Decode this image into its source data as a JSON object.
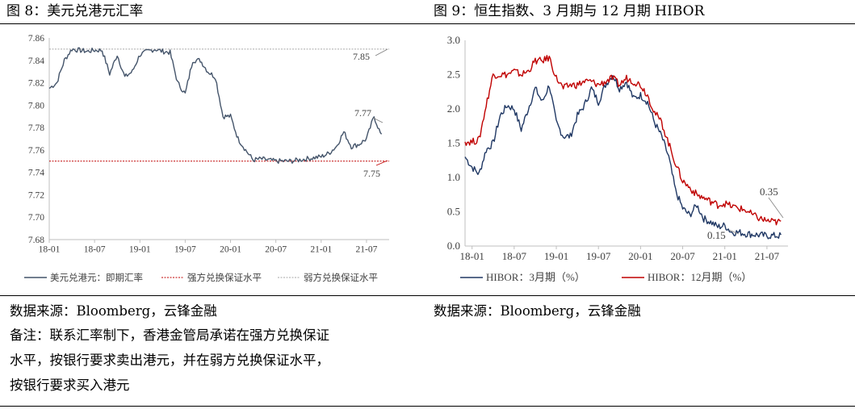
{
  "left": {
    "title": "图 8：美元兑港元汇率",
    "source": "数据来源：Bloomberg，云锋金融",
    "notes": [
      "备注：联系汇率制下，香港金管局承诺在强方兑换保证",
      "水平，按银行要求卖出港元，并在弱方兑换保证水平，",
      "按银行要求买入港元"
    ]
  },
  "right": {
    "title": "图 9：恒生指数、3 月期与 12 月期 HIBOR",
    "source": "数据来源：Bloomberg，云锋金融"
  },
  "chart_data": [
    {
      "type": "line",
      "ylim": [
        7.68,
        7.86
      ],
      "yticks": [
        "7.68",
        "7.70",
        "7.72",
        "7.74",
        "7.76",
        "7.78",
        "7.80",
        "7.82",
        "7.84",
        "7.86"
      ],
      "xticks": [
        "18-01",
        "18-07",
        "19-01",
        "19-07",
        "20-01",
        "20-07",
        "21-01",
        "21-07"
      ],
      "x_start": "2018-01",
      "x_end": "2021-10",
      "grid": false,
      "legend_position": "bottom",
      "series": [
        {
          "name": "美元兑港元：即期汇率",
          "color": "#44546a",
          "x": [
            "2018-01",
            "2018-02",
            "2018-03",
            "2018-04",
            "2018-05",
            "2018-06",
            "2018-07",
            "2018-08",
            "2018-09",
            "2018-10",
            "2018-11",
            "2018-12",
            "2019-01",
            "2019-02",
            "2019-03",
            "2019-04",
            "2019-05",
            "2019-06",
            "2019-07",
            "2019-08",
            "2019-09",
            "2019-10",
            "2019-11",
            "2019-12",
            "2020-01",
            "2020-02",
            "2020-03",
            "2020-04",
            "2020-05",
            "2020-06",
            "2020-07",
            "2020-08",
            "2020-09",
            "2020-10",
            "2020-11",
            "2020-12",
            "2021-01",
            "2021-02",
            "2021-03",
            "2021-04",
            "2021-05",
            "2021-06",
            "2021-07",
            "2021-08",
            "2021-09"
          ],
          "values": [
            7.815,
            7.82,
            7.84,
            7.85,
            7.849,
            7.848,
            7.849,
            7.849,
            7.828,
            7.845,
            7.825,
            7.83,
            7.845,
            7.848,
            7.85,
            7.848,
            7.847,
            7.82,
            7.81,
            7.84,
            7.84,
            7.83,
            7.825,
            7.79,
            7.79,
            7.77,
            7.76,
            7.751,
            7.752,
            7.751,
            7.75,
            7.75,
            7.75,
            7.751,
            7.752,
            7.753,
            7.754,
            7.757,
            7.763,
            7.776,
            7.763,
            7.765,
            7.77,
            7.79,
            7.772
          ]
        }
      ],
      "reference_lines": [
        {
          "name": "强方兑换保证水平",
          "value": 7.75,
          "color": "#c00000"
        },
        {
          "name": "弱方兑换保证水平",
          "value": 7.85,
          "color": "#a6a6a6"
        }
      ],
      "annotations": [
        "7.85",
        "7.77",
        "7.75"
      ]
    },
    {
      "type": "line",
      "ylim": [
        0.0,
        3.0
      ],
      "yticks": [
        "0.0",
        "0.5",
        "1.0",
        "1.5",
        "2.0",
        "2.5",
        "3.0"
      ],
      "xticks": [
        "18-01",
        "18-07",
        "19-01",
        "19-07",
        "20-01",
        "20-07",
        "21-01",
        "21-07"
      ],
      "x_start": "2017-12",
      "x_end": "2021-10",
      "grid": false,
      "legend_position": "bottom",
      "series": [
        {
          "name": "HIBOR：3月期（%）",
          "color": "#203864",
          "x": [
            "2017-12",
            "2018-01",
            "2018-02",
            "2018-03",
            "2018-04",
            "2018-05",
            "2018-06",
            "2018-07",
            "2018-08",
            "2018-09",
            "2018-10",
            "2018-11",
            "2018-12",
            "2019-01",
            "2019-02",
            "2019-03",
            "2019-04",
            "2019-05",
            "2019-06",
            "2019-07",
            "2019-08",
            "2019-09",
            "2019-10",
            "2019-11",
            "2019-12",
            "2020-01",
            "2020-02",
            "2020-03",
            "2020-04",
            "2020-05",
            "2020-06",
            "2020-07",
            "2020-08",
            "2020-09",
            "2020-10",
            "2020-11",
            "2020-12",
            "2021-01",
            "2021-02",
            "2021-03",
            "2021-04",
            "2021-05",
            "2021-06",
            "2021-07",
            "2021-08",
            "2021-09"
          ],
          "values": [
            1.3,
            1.15,
            1.05,
            1.4,
            1.5,
            1.9,
            2.05,
            2.0,
            1.7,
            2.0,
            2.3,
            2.1,
            2.35,
            1.8,
            1.6,
            1.6,
            1.9,
            2.05,
            2.3,
            2.1,
            2.35,
            2.5,
            2.3,
            2.4,
            2.15,
            2.2,
            2.1,
            1.8,
            1.6,
            1.3,
            0.8,
            0.55,
            0.45,
            0.6,
            0.4,
            0.35,
            0.28,
            0.3,
            0.2,
            0.2,
            0.18,
            0.17,
            0.16,
            0.15,
            0.15,
            0.15
          ]
        },
        {
          "name": "HIBOR：12月期（%）",
          "color": "#c00000",
          "x": [
            "2017-12",
            "2018-01",
            "2018-02",
            "2018-03",
            "2018-04",
            "2018-05",
            "2018-06",
            "2018-07",
            "2018-08",
            "2018-09",
            "2018-10",
            "2018-11",
            "2018-12",
            "2019-01",
            "2019-02",
            "2019-03",
            "2019-04",
            "2019-05",
            "2019-06",
            "2019-07",
            "2019-08",
            "2019-09",
            "2019-10",
            "2019-11",
            "2019-12",
            "2020-01",
            "2020-02",
            "2020-03",
            "2020-04",
            "2020-05",
            "2020-06",
            "2020-07",
            "2020-08",
            "2020-09",
            "2020-10",
            "2020-11",
            "2020-12",
            "2021-01",
            "2021-02",
            "2021-03",
            "2021-04",
            "2021-05",
            "2021-06",
            "2021-07",
            "2021-08",
            "2021-09"
          ],
          "values": [
            1.52,
            1.52,
            1.55,
            2.05,
            2.5,
            2.5,
            2.5,
            2.55,
            2.5,
            2.55,
            2.7,
            2.7,
            2.75,
            2.45,
            2.3,
            2.35,
            2.35,
            2.4,
            2.4,
            2.35,
            2.4,
            2.45,
            2.35,
            2.45,
            2.4,
            2.35,
            2.2,
            1.95,
            1.8,
            1.5,
            1.2,
            0.95,
            0.85,
            0.75,
            0.7,
            0.65,
            0.6,
            0.62,
            0.58,
            0.55,
            0.52,
            0.45,
            0.4,
            0.37,
            0.35,
            0.35
          ]
        }
      ],
      "annotations": [
        "0.35",
        "0.15"
      ]
    }
  ]
}
